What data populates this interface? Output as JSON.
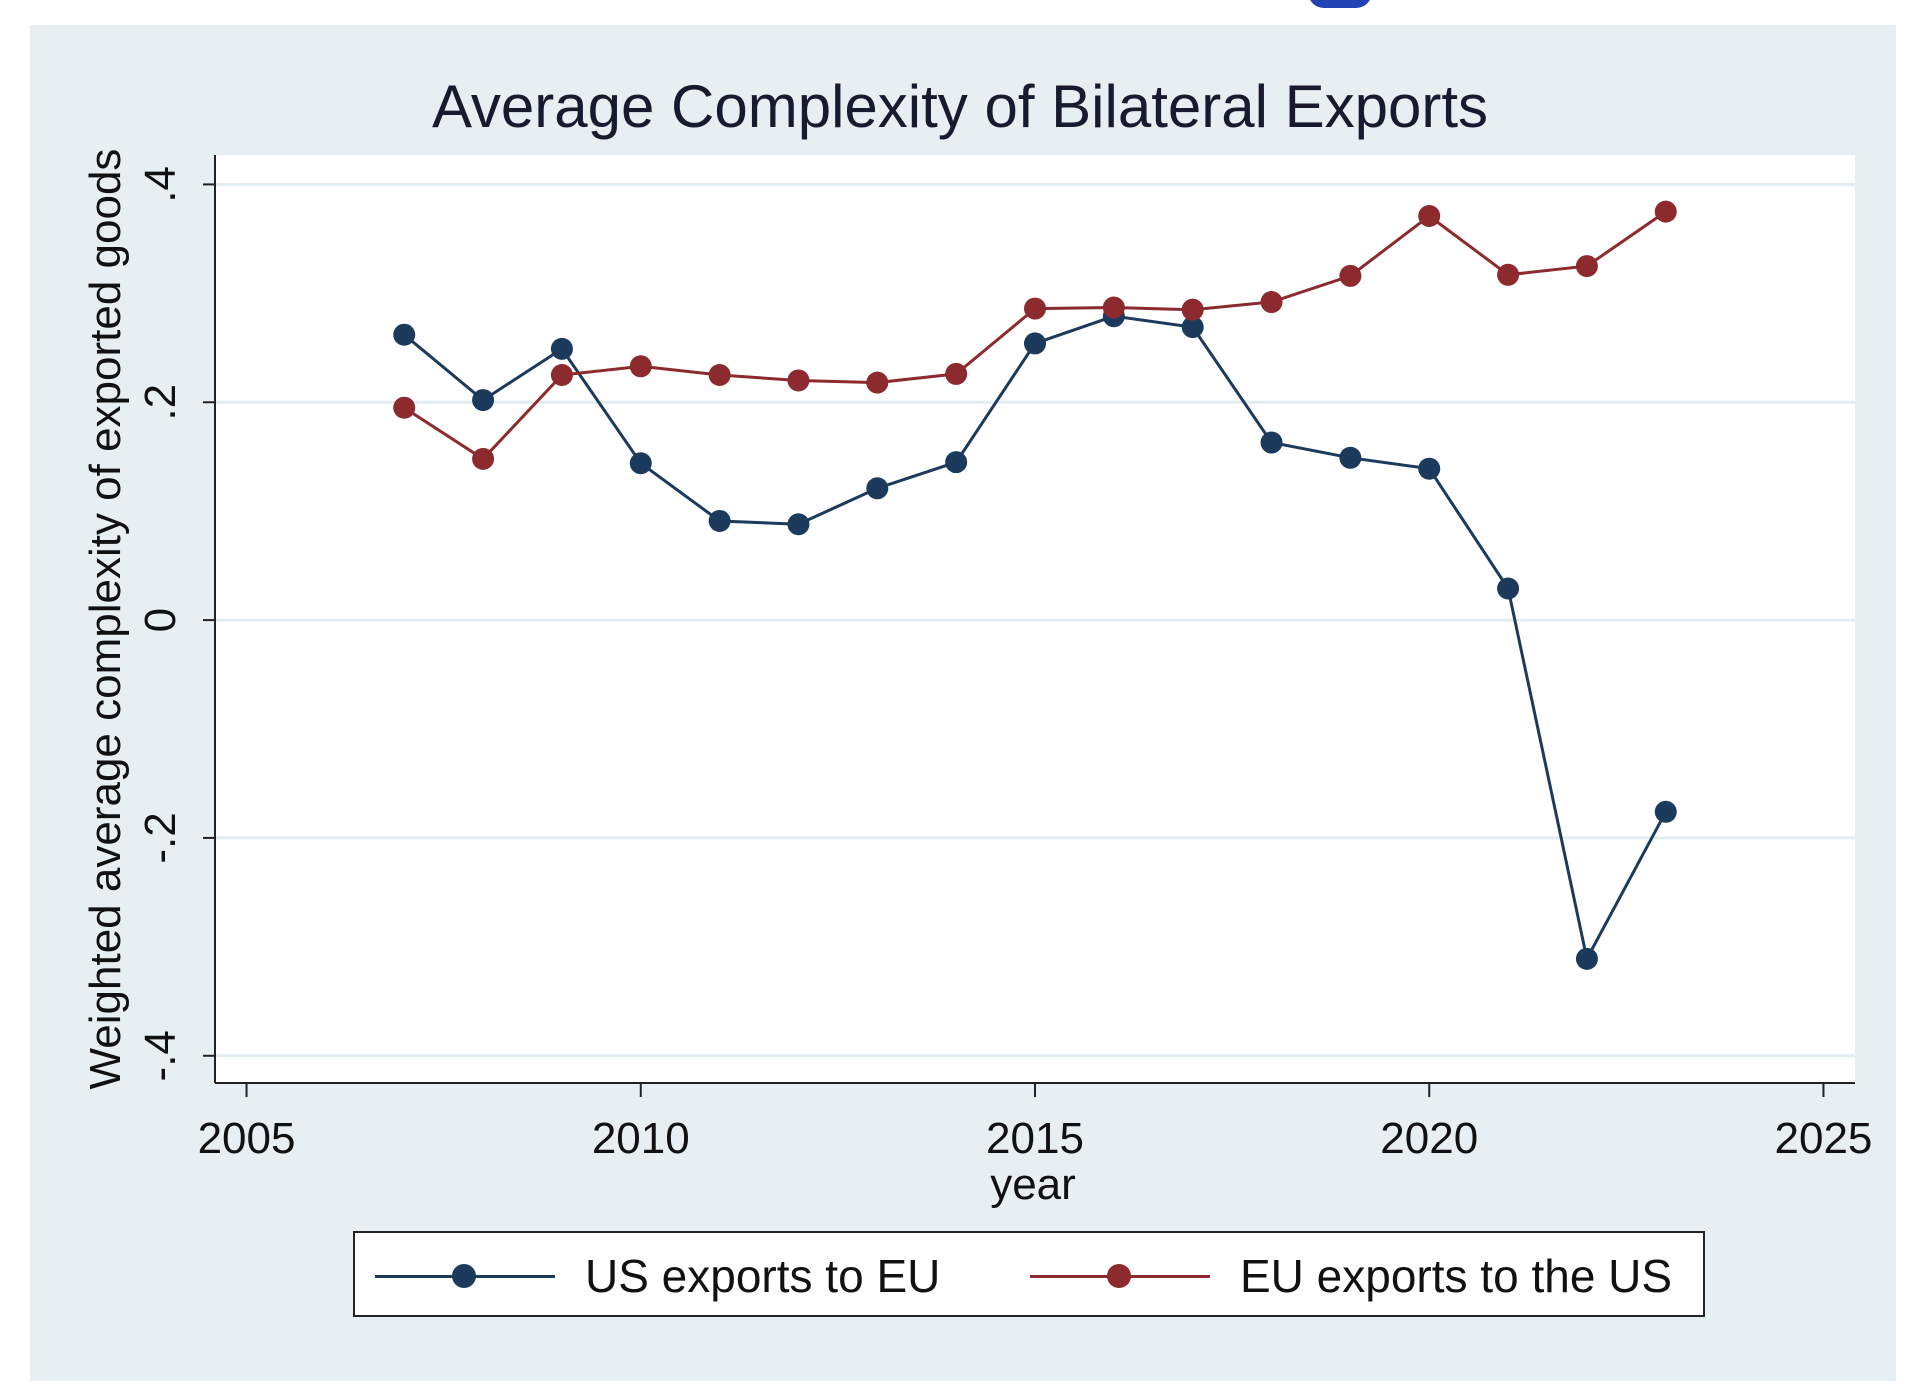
{
  "chart_data": {
    "type": "line",
    "title": "Average Complexity of Bilateral Exports",
    "xlabel": "year",
    "ylabel": "Weighted average complexity of exported goods",
    "xlim": [
      2004.6,
      2025.4
    ],
    "ylim": [
      -0.425,
      0.427
    ],
    "xticks": [
      2005,
      2010,
      2015,
      2020,
      2025
    ],
    "xtick_labels": [
      "2005",
      "2010",
      "2015",
      "2020",
      "2025"
    ],
    "yticks": [
      -0.4,
      -0.2,
      0,
      0.2,
      0.4
    ],
    "ytick_labels": [
      "-.4",
      "-.2",
      "0",
      ".2",
      ".4"
    ],
    "grid": true,
    "legend_position": "bottom",
    "x": [
      2007,
      2008,
      2009,
      2010,
      2011,
      2012,
      2013,
      2014,
      2015,
      2016,
      2017,
      2018,
      2019,
      2020,
      2021,
      2022,
      2023
    ],
    "series": [
      {
        "name": "US exports to EU",
        "color": "#1b3a5c",
        "values": [
          0.262,
          0.202,
          0.249,
          0.144,
          0.091,
          0.088,
          0.121,
          0.145,
          0.254,
          0.279,
          0.269,
          0.163,
          0.149,
          0.139,
          0.029,
          -0.311,
          -0.176
        ]
      },
      {
        "name": "EU exports to the US",
        "color": "#8c2a2e",
        "values": [
          0.195,
          0.148,
          0.225,
          0.233,
          0.225,
          0.22,
          0.218,
          0.226,
          0.286,
          0.287,
          0.285,
          0.292,
          0.316,
          0.371,
          0.317,
          0.325,
          0.375
        ]
      }
    ]
  },
  "colors": {
    "frame_background": "#e8eff2",
    "plot_background": "#ffffff",
    "gridline": "#e3ecef"
  }
}
